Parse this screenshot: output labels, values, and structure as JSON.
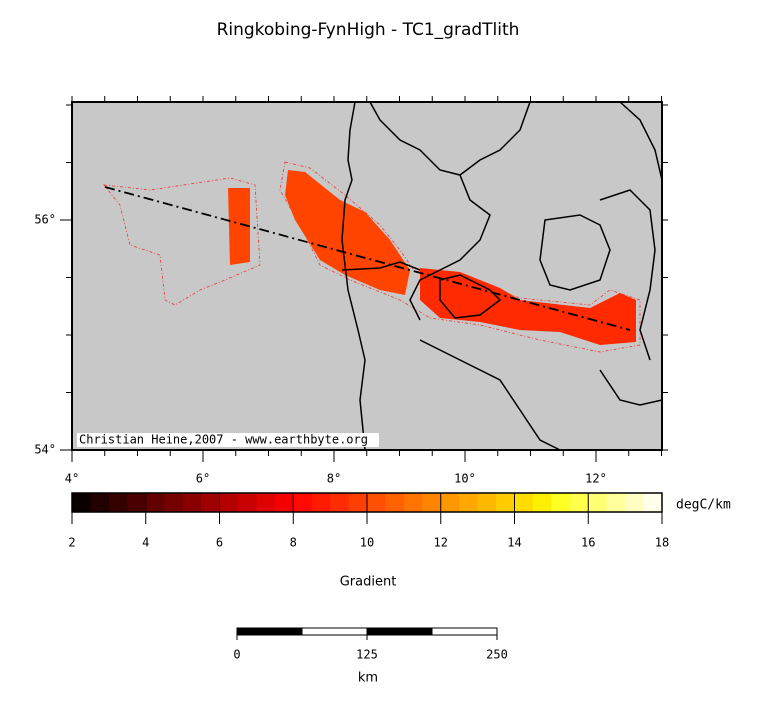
{
  "title": "Ringkobing-FynHigh - TC1_gradTlith",
  "map": {
    "lon_ticks": [
      {
        "value": 4,
        "label": "4°"
      },
      {
        "value": 6,
        "label": "6°"
      },
      {
        "value": 8,
        "label": "8°"
      },
      {
        "value": 10,
        "label": "10°"
      },
      {
        "value": 12,
        "label": "12°"
      }
    ],
    "lat_ticks": [
      {
        "value": 54,
        "label": "54°"
      },
      {
        "value": 56,
        "label": "56°"
      }
    ],
    "credit": "Christian Heine,2007 - www.earthbyte.org"
  },
  "colorbar": {
    "ticks": [
      2,
      4,
      6,
      8,
      10,
      12,
      14,
      16,
      18
    ],
    "unit": "degC/km",
    "label": "Gradient"
  },
  "scalebar": {
    "ticks": [
      0,
      125,
      250
    ],
    "unit": "km"
  }
}
